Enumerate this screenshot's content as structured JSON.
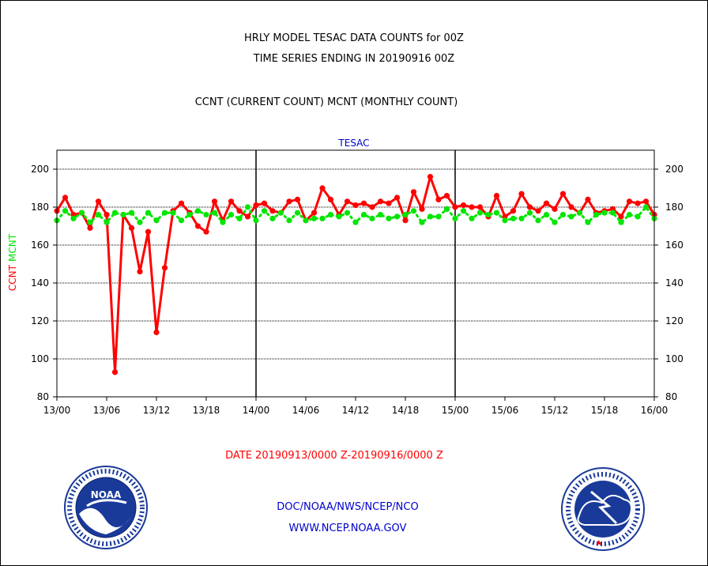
{
  "header": {
    "title_line1": "HRLY MODEL TESAC DATA COUNTS for 00Z",
    "title_line2": "TIME SERIES ENDING IN 20190916 00Z",
    "subtitle": "CCNT (CURRENT COUNT) MCNT (MONTHLY COUNT)"
  },
  "footer": {
    "date_range": "DATE 20190913/0000 Z-20190916/0000 Z",
    "agency": "DOC/NOAA/NWS/NCEP/NCO",
    "website": "WWW.NCEP.NOAA.GOV"
  },
  "logos": {
    "noaa_text": "NOAA"
  },
  "colors": {
    "ccnt": "#ff0000",
    "mcnt": "#00e600",
    "text_blue": "#0000cc",
    "axis": "#000000"
  },
  "chart_data": {
    "type": "line",
    "title": "TESAC",
    "ylabel_ccnt": "CCNT",
    "ylabel_mcnt": "MCNT",
    "ylim": [
      80,
      210
    ],
    "yticks": [
      80,
      100,
      120,
      140,
      160,
      180,
      200
    ],
    "xlim": [
      0,
      72
    ],
    "xticks": [
      0,
      6,
      12,
      18,
      24,
      30,
      36,
      42,
      48,
      54,
      60,
      66,
      72
    ],
    "xtick_labels": [
      "13/00",
      "13/06",
      "13/12",
      "13/18",
      "14/00",
      "14/06",
      "14/12",
      "14/18",
      "15/00",
      "15/06",
      "15/12",
      "15/18",
      "16/00"
    ],
    "day_boundaries": [
      24,
      48
    ],
    "grid": true,
    "series": [
      {
        "name": "CCNT",
        "color": "#ff0000",
        "x": [
          0,
          1,
          2,
          3,
          4,
          5,
          6,
          7,
          8,
          9,
          10,
          11,
          12,
          13,
          14,
          15,
          16,
          17,
          18,
          19,
          20,
          21,
          22,
          23,
          24,
          25,
          26,
          27,
          28,
          29,
          30,
          31,
          32,
          33,
          34,
          35,
          36,
          37,
          38,
          39,
          40,
          41,
          42,
          43,
          44,
          45,
          46,
          47,
          48,
          49,
          50,
          51,
          52,
          53,
          54,
          55,
          56,
          57,
          58,
          59,
          60,
          61,
          62,
          63,
          64,
          65,
          66,
          67,
          68,
          69,
          70,
          71,
          72
        ],
        "values": [
          178,
          185,
          176,
          177,
          169,
          183,
          176,
          93,
          176,
          169,
          146,
          167,
          114,
          148,
          178,
          182,
          177,
          170,
          167,
          183,
          173,
          183,
          178,
          175,
          181,
          182,
          178,
          177,
          183,
          184,
          173,
          177,
          190,
          184,
          176,
          183,
          181,
          182,
          180,
          183,
          182,
          185,
          173,
          188,
          179,
          196,
          184,
          186,
          180,
          181,
          180,
          180,
          175,
          186,
          175,
          178,
          187,
          180,
          178,
          182,
          179,
          187,
          180,
          177,
          184,
          177,
          178,
          179,
          175,
          183,
          182,
          183,
          176
        ]
      },
      {
        "name": "MCNT",
        "color": "#00e600",
        "x": [
          0,
          1,
          2,
          3,
          4,
          5,
          6,
          7,
          8,
          9,
          10,
          11,
          12,
          13,
          14,
          15,
          16,
          17,
          18,
          19,
          20,
          21,
          22,
          23,
          24,
          25,
          26,
          27,
          28,
          29,
          30,
          31,
          32,
          33,
          34,
          35,
          36,
          37,
          38,
          39,
          40,
          41,
          42,
          43,
          44,
          45,
          46,
          47,
          48,
          49,
          50,
          51,
          52,
          53,
          54,
          55,
          56,
          57,
          58,
          59,
          60,
          61,
          62,
          63,
          64,
          65,
          66,
          67,
          68,
          69,
          70,
          71,
          72
        ],
        "values": [
          173,
          178,
          174,
          177,
          172,
          176,
          172,
          177,
          176,
          177,
          172,
          177,
          173,
          177,
          177,
          173,
          176,
          178,
          176,
          177,
          172,
          176,
          174,
          180,
          173,
          178,
          174,
          177,
          173,
          177,
          173,
          174,
          174,
          176,
          175,
          177,
          172,
          176,
          174,
          176,
          174,
          175,
          176,
          178,
          172,
          175,
          175,
          179,
          174,
          178,
          174,
          177,
          176,
          177,
          173,
          174,
          174,
          177,
          173,
          176,
          172,
          176,
          175,
          177,
          172,
          176,
          177,
          177,
          172,
          176,
          175,
          180,
          174
        ]
      }
    ]
  }
}
